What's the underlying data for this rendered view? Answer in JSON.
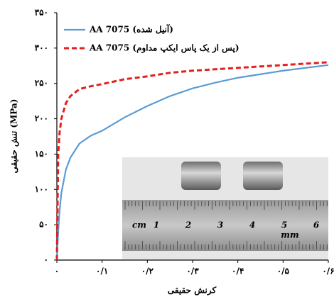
{
  "chart_data": {
    "type": "line",
    "x_label": "کرنش حقیقی",
    "y_label": "تنش حقیقی (MPa)",
    "x": [
      0,
      0.003,
      0.006,
      0.01,
      0.02,
      0.03,
      0.05,
      0.075,
      0.1,
      0.15,
      0.2,
      0.25,
      0.3,
      0.35,
      0.4,
      0.45,
      0.5,
      0.55,
      0.6
    ],
    "series": [
      {
        "name": "AA 7075 (آنیل شده)",
        "color": "#5b9bd5",
        "dash": false,
        "values": [
          0,
          40,
          70,
          95,
          128,
          145,
          165,
          176,
          183,
          202,
          218,
          232,
          243,
          251,
          258,
          263,
          268,
          272,
          276
        ]
      },
      {
        "name": "AA 7075 (پس از یک پاس ایکپ مداوم)",
        "color": "#e3201b",
        "dash": true,
        "values": [
          0,
          150,
          180,
          200,
          222,
          232,
          242,
          246,
          249,
          256,
          260,
          265,
          268,
          270,
          272,
          274,
          276,
          278,
          280
        ]
      }
    ],
    "xlim": [
      0,
      0.6
    ],
    "ylim": [
      0,
      350
    ],
    "xticks": [
      {
        "value": 0,
        "label": "۰"
      },
      {
        "value": 0.1,
        "label": "۰/۱"
      },
      {
        "value": 0.2,
        "label": "۰/۲"
      },
      {
        "value": 0.3,
        "label": "۰/۳"
      },
      {
        "value": 0.4,
        "label": "۰/۴"
      },
      {
        "value": 0.5,
        "label": "۰/۵"
      },
      {
        "value": 0.6,
        "label": "۰/۶"
      }
    ],
    "yticks": [
      {
        "value": 0,
        "label": "۰"
      },
      {
        "value": 50,
        "label": "۵۰"
      },
      {
        "value": 100,
        "label": "۱۰۰"
      },
      {
        "value": 150,
        "label": "۱۵۰"
      },
      {
        "value": 200,
        "label": "۲۰۰"
      },
      {
        "value": 250,
        "label": "۲۵۰"
      },
      {
        "value": 300,
        "label": "۳۰۰"
      },
      {
        "value": 350,
        "label": "۳۵۰"
      }
    ],
    "legend": "upper left",
    "inset_text": [
      "cm",
      "1",
      "2",
      "3",
      "4",
      "5",
      "6",
      "mm"
    ]
  }
}
